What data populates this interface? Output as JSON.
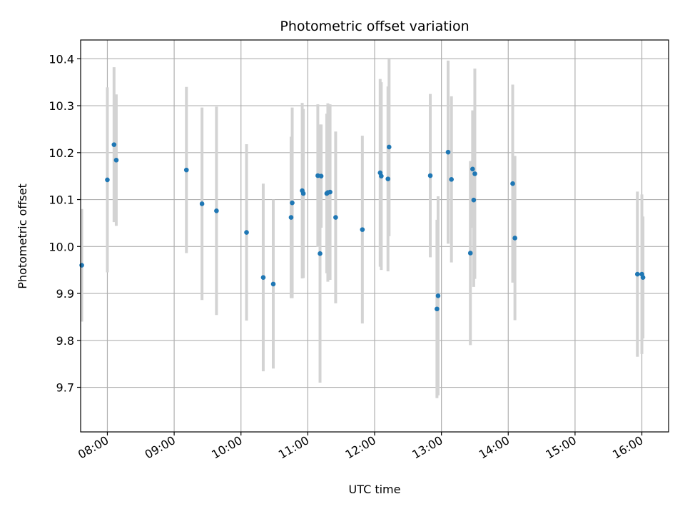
{
  "chart_data": {
    "type": "scatter",
    "title": "Photometric offset variation",
    "xlabel": "UTC time",
    "ylabel": "Photometric offset",
    "xlim": [
      "07:36",
      "16:24"
    ],
    "ylim": [
      9.605,
      10.44
    ],
    "x_ticks": [
      "08:00",
      "09:00",
      "10:00",
      "11:00",
      "12:00",
      "13:00",
      "14:00",
      "15:00",
      "16:00"
    ],
    "y_ticks": [
      9.7,
      9.8,
      9.9,
      10.0,
      10.1,
      10.2,
      10.3,
      10.4
    ],
    "y_tick_labels": [
      "9.7",
      "9.8",
      "9.9",
      "10.0",
      "10.1",
      "10.2",
      "10.3",
      "10.4"
    ],
    "grid": true,
    "point_color": "#1f77b4",
    "errorbar_color": "#d3d3d3",
    "points": [
      {
        "x": "07:37",
        "y": 9.96,
        "yerr": 0.12
      },
      {
        "x": "08:00",
        "y": 10.142,
        "yerr": 0.197
      },
      {
        "x": "08:06",
        "y": 10.217,
        "yerr": 0.165
      },
      {
        "x": "08:08",
        "y": 10.184,
        "yerr": 0.14
      },
      {
        "x": "09:11",
        "y": 10.163,
        "yerr": 0.177
      },
      {
        "x": "09:25",
        "y": 10.091,
        "yerr": 0.205
      },
      {
        "x": "09:38",
        "y": 10.076,
        "yerr": 0.222
      },
      {
        "x": "10:05",
        "y": 10.03,
        "yerr": 0.188
      },
      {
        "x": "10:20",
        "y": 9.934,
        "yerr": 0.2
      },
      {
        "x": "10:29",
        "y": 9.92,
        "yerr": 0.18
      },
      {
        "x": "10:45",
        "y": 10.062,
        "yerr": 0.172
      },
      {
        "x": "10:46",
        "y": 10.093,
        "yerr": 0.203
      },
      {
        "x": "10:55",
        "y": 10.119,
        "yerr": 0.187
      },
      {
        "x": "10:56",
        "y": 10.113,
        "yerr": 0.18
      },
      {
        "x": "11:09",
        "y": 10.151,
        "yerr": 0.152
      },
      {
        "x": "11:11",
        "y": 9.985,
        "yerr": 0.275
      },
      {
        "x": "11:12",
        "y": 10.15,
        "yerr": 0.11
      },
      {
        "x": "11:17",
        "y": 10.113,
        "yerr": 0.17
      },
      {
        "x": "11:18",
        "y": 10.115,
        "yerr": 0.19
      },
      {
        "x": "11:20",
        "y": 10.116,
        "yerr": 0.187
      },
      {
        "x": "11:25",
        "y": 10.062,
        "yerr": 0.183
      },
      {
        "x": "11:49",
        "y": 10.036,
        "yerr": 0.2
      },
      {
        "x": "12:05",
        "y": 10.157,
        "yerr": 0.2
      },
      {
        "x": "12:06",
        "y": 10.15,
        "yerr": 0.2
      },
      {
        "x": "12:12",
        "y": 10.144,
        "yerr": 0.197
      },
      {
        "x": "12:13",
        "y": 10.212,
        "yerr": 0.19
      },
      {
        "x": "12:50",
        "y": 10.151,
        "yerr": 0.174
      },
      {
        "x": "12:56",
        "y": 9.867,
        "yerr": 0.19
      },
      {
        "x": "12:57",
        "y": 9.895,
        "yerr": 0.212
      },
      {
        "x": "13:06",
        "y": 10.201,
        "yerr": 0.195
      },
      {
        "x": "13:09",
        "y": 10.143,
        "yerr": 0.177
      },
      {
        "x": "13:26",
        "y": 9.986,
        "yerr": 0.196
      },
      {
        "x": "13:28",
        "y": 10.165,
        "yerr": 0.125
      },
      {
        "x": "13:29",
        "y": 10.099,
        "yerr": 0.185
      },
      {
        "x": "13:30",
        "y": 10.155,
        "yerr": 0.224
      },
      {
        "x": "14:04",
        "y": 10.134,
        "yerr": 0.211
      },
      {
        "x": "14:06",
        "y": 10.018,
        "yerr": 0.175
      },
      {
        "x": "15:56",
        "y": 9.941,
        "yerr": 0.176
      },
      {
        "x": "16:00",
        "y": 9.941,
        "yerr": 0.17
      },
      {
        "x": "16:01",
        "y": 9.934,
        "yerr": 0.13
      }
    ]
  }
}
